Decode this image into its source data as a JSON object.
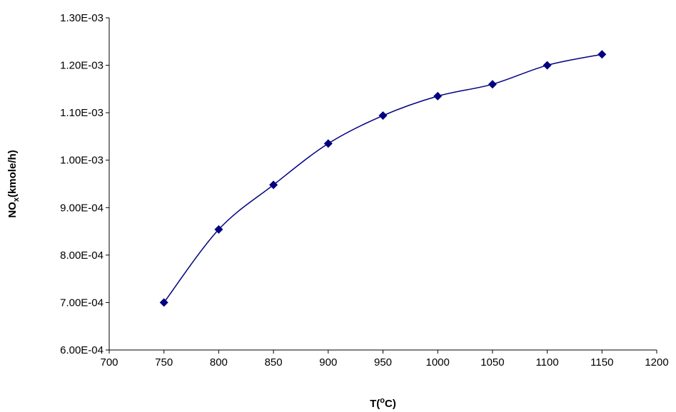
{
  "chart_data": {
    "type": "line",
    "xlabel": [
      "T(",
      "o",
      "C)"
    ],
    "ylabel": [
      "NO",
      "x",
      "(kmole/h)"
    ],
    "x": [
      750,
      800,
      850,
      900,
      950,
      1000,
      1050,
      1100,
      1150
    ],
    "series": [
      {
        "color": "#000080",
        "values": [
          0.0007,
          0.000854,
          0.000948,
          0.001035,
          0.001094,
          0.001135,
          0.00116,
          0.0012,
          0.001223
        ]
      }
    ],
    "xlim": [
      700,
      1200
    ],
    "xticks": [
      700,
      750,
      800,
      850,
      900,
      950,
      1000,
      1050,
      1100,
      1150,
      1200
    ],
    "ylim": [
      0.0006,
      0.0013
    ],
    "yticks": [
      {
        "value": 0.0006,
        "label": "6.00E-04"
      },
      {
        "value": 0.0007,
        "label": "7.00E-04"
      },
      {
        "value": 0.0008,
        "label": "8.00E-04"
      },
      {
        "value": 0.0009,
        "label": "9.00E-04"
      },
      {
        "value": 0.001,
        "label": "1.00E-03"
      },
      {
        "value": 0.0011,
        "label": "1.10E-03"
      },
      {
        "value": 0.0012,
        "label": "1.20E-03"
      },
      {
        "value": 0.0013,
        "label": "1.30E-03"
      }
    ],
    "smooth": true,
    "marker": "diamond"
  }
}
